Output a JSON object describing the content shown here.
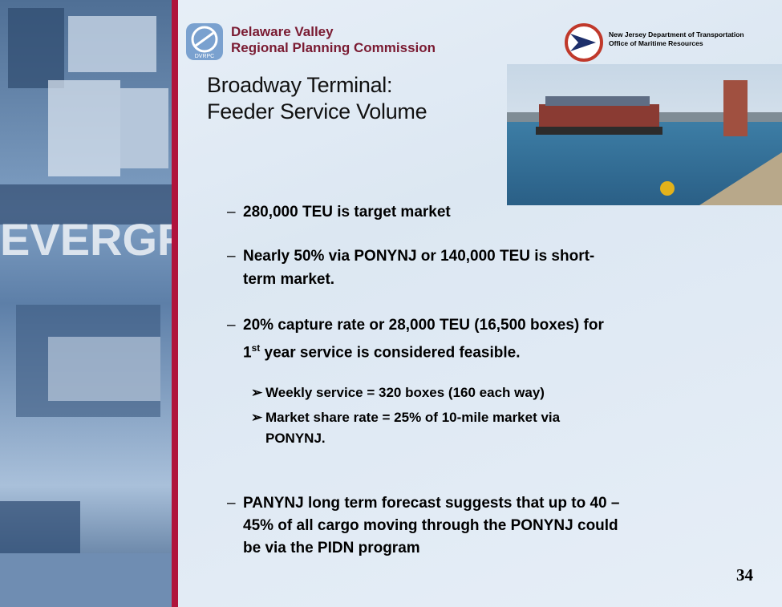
{
  "background_text": "EVERGREEN",
  "header": {
    "logo_text": "DVRPC",
    "org_name_line1": "Delaware Valley",
    "org_name_line2": "Regional Planning Commission",
    "partner_line1": "New Jersey Department of Transportation",
    "partner_line2": "Office of Maritime Resources"
  },
  "title": {
    "line1": "Broadway Terminal:",
    "line2": "Feeder Service Volume"
  },
  "bullet_marker": "–",
  "sub_bullet_marker": "➢",
  "bullets": [
    {
      "lines": [
        "280,000 TEU is target market"
      ]
    },
    {
      "lines": [
        "Nearly 50% via PONYNJ or 140,000 TEU is short-",
        "term market."
      ]
    },
    {
      "lines": [
        "20% capture rate or 28,000 TEU (16,500 boxes) for"
      ],
      "line2_runs": [
        "1",
        "st",
        " year service is considered feasible."
      ],
      "sub_bullets": [
        {
          "lines": [
            "Weekly service = 320 boxes (160 each way)"
          ]
        },
        {
          "lines": [
            "Market share rate = 25% of 10-mile market via",
            "PONYNJ."
          ]
        }
      ]
    },
    {
      "lines": [
        "PANYNJ long term forecast suggests that up to 40 –",
        "45% of all cargo moving through the PONYNJ could",
        "be via the PIDN program"
      ]
    }
  ],
  "page_number": "34"
}
